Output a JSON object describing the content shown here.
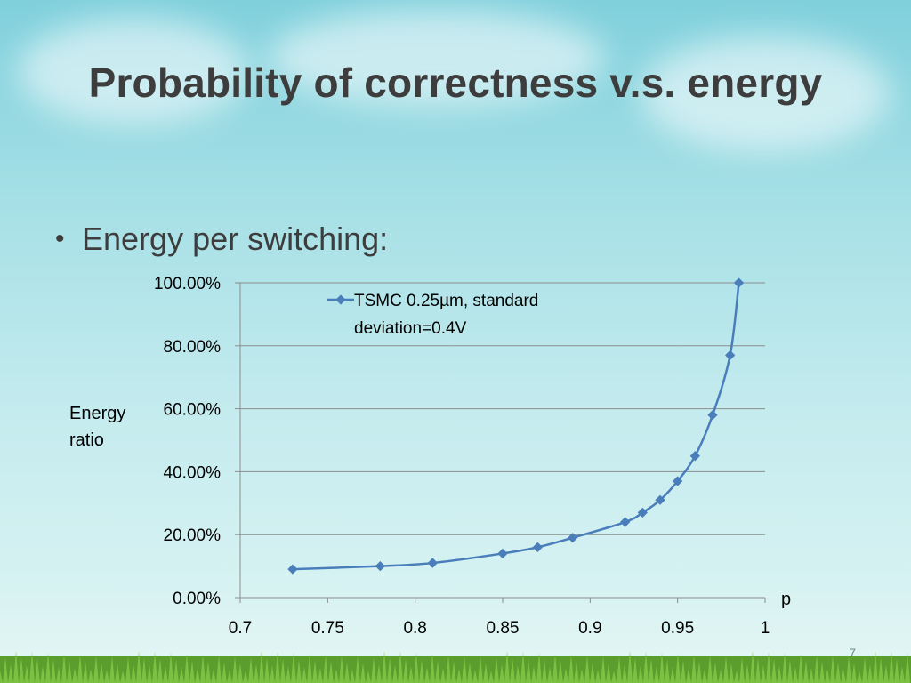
{
  "slide": {
    "title": "Probability of correctness v.s. energy",
    "bullet": "Energy per switching:",
    "slide_number": "7"
  },
  "colors": {
    "series": "#4a7ebb",
    "grid": "#8c8c8c",
    "title": "#3d3d3d"
  },
  "chart_data": {
    "type": "line",
    "title": "",
    "xlabel": "p",
    "ylabel": "Energy\nratio",
    "xlim": [
      0.7,
      1
    ],
    "ylim": [
      0,
      1
    ],
    "x_ticks": [
      "0.7",
      "0.75",
      "0.8",
      "0.85",
      "0.9",
      "0.95",
      "1"
    ],
    "y_ticks": [
      "0.00%",
      "20.00%",
      "40.00%",
      "60.00%",
      "80.00%",
      "100.00%"
    ],
    "grid": true,
    "legend_position": "top-center",
    "series": [
      {
        "name": "TSMC 0.25µm, standard deviation=0.4V",
        "x": [
          0.73,
          0.78,
          0.81,
          0.85,
          0.87,
          0.89,
          0.92,
          0.93,
          0.94,
          0.95,
          0.96,
          0.97,
          0.98,
          0.985
        ],
        "y": [
          0.09,
          0.1,
          0.11,
          0.14,
          0.16,
          0.19,
          0.24,
          0.27,
          0.31,
          0.37,
          0.45,
          0.58,
          0.77,
          1.0
        ]
      }
    ]
  }
}
